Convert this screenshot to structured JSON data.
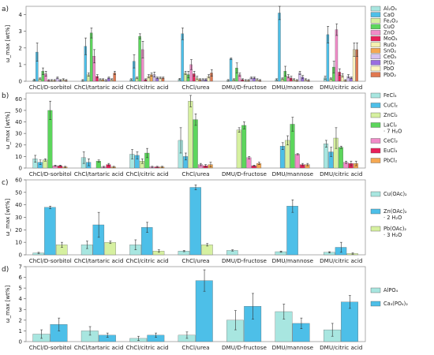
{
  "chart_data": [
    {
      "type": "bar",
      "panel_label": "a)",
      "ylabel": "ω_max [wt%]",
      "ylim": [
        0,
        4.5
      ],
      "yticks": [
        0,
        1,
        2,
        3,
        4
      ],
      "categories": [
        "ChCl/D-sorbitol",
        "ChCl/tartaric acid",
        "ChCl/citric acid",
        "ChCl/urea",
        "DMU/D-fructose",
        "DMU/mannose",
        "DMU/citric acid"
      ],
      "series": [
        {
          "name": "Al₂O₃",
          "color": "#a8e6e0",
          "values": [
            0.08,
            0.05,
            0.1,
            0.12,
            0.05,
            0.1,
            0.2
          ],
          "errors": [
            0.05,
            0.05,
            0.05,
            0.05,
            0.05,
            0.05,
            0.1
          ]
        },
        {
          "name": "CaO",
          "color": "#4dbfe8",
          "values": [
            1.75,
            2.1,
            1.2,
            2.85,
            1.35,
            4.1,
            2.8
          ],
          "errors": [
            0.55,
            0.5,
            0.4,
            0.35,
            0.05,
            0.4,
            0.5
          ]
        },
        {
          "name": "Fe₂O₃",
          "color": "#d6f0a0",
          "values": [
            0.15,
            0.4,
            0.2,
            0.5,
            0.1,
            0.15,
            0.15
          ],
          "errors": [
            0.05,
            0.1,
            0.05,
            0.1,
            0.05,
            0.05,
            0.05
          ]
        },
        {
          "name": "CuO",
          "color": "#5cd65c",
          "values": [
            0.6,
            2.9,
            2.7,
            0.4,
            0.8,
            0.6,
            0.85
          ],
          "errors": [
            0.2,
            0.3,
            0.15,
            0.2,
            0.3,
            0.3,
            0.35
          ]
        },
        {
          "name": "ZnO",
          "color": "#f08cc8",
          "values": [
            0.45,
            1.5,
            1.9,
            1.0,
            0.4,
            0.3,
            3.1
          ],
          "errors": [
            0.15,
            0.4,
            0.5,
            0.3,
            0.1,
            0.1,
            0.35
          ]
        },
        {
          "name": "MoO₃",
          "color": "#e8205a",
          "values": [
            0.05,
            0.3,
            0.1,
            0.45,
            0.1,
            0.2,
            0.55
          ],
          "errors": [
            0.05,
            0.1,
            0.05,
            0.15,
            0.05,
            0.1,
            0.2
          ]
        },
        {
          "name": "RuO₂",
          "color": "#f5f0b0",
          "values": [
            0.05,
            0.1,
            0.3,
            0.2,
            0.05,
            0.1,
            0.35
          ],
          "errors": [
            0.05,
            0.05,
            0.1,
            0.1,
            0.05,
            0.05,
            0.1
          ]
        },
        {
          "name": "SnO₂",
          "color": "#f5a852",
          "values": [
            0.05,
            0.1,
            0.4,
            0.1,
            0.05,
            0.05,
            0.05
          ],
          "errors": [
            0.05,
            0.05,
            0.1,
            0.05,
            0.05,
            0.05,
            0.05
          ]
        },
        {
          "name": "CeO₂",
          "color": "#d6c2f0",
          "values": [
            0.2,
            0.05,
            0.4,
            0.1,
            0.2,
            0.5,
            0.3
          ],
          "errors": [
            0.05,
            0.05,
            0.15,
            0.05,
            0.05,
            0.1,
            0.1
          ]
        },
        {
          "name": "PtO₂",
          "color": "#9a6ee0",
          "values": [
            0.05,
            0.2,
            0.2,
            0.1,
            0.2,
            0.25,
            0.2
          ],
          "errors": [
            0.05,
            0.05,
            0.05,
            0.05,
            0.05,
            0.1,
            0.05
          ]
        },
        {
          "name": "PbO",
          "color": "#fff6c0",
          "values": [
            0.1,
            0.1,
            0.2,
            0.3,
            0.1,
            0.1,
            1.9
          ],
          "errors": [
            0.05,
            0.05,
            0.05,
            0.1,
            0.05,
            0.05,
            0.4
          ]
        },
        {
          "name": "PbO₂",
          "color": "#e07850",
          "values": [
            0.05,
            0.5,
            0.2,
            0.5,
            0.05,
            0.05,
            1.9
          ],
          "errors": [
            0.05,
            0.1,
            0.05,
            0.2,
            0.05,
            0.05,
            0.4
          ]
        }
      ]
    },
    {
      "type": "bar",
      "panel_label": "b)",
      "ylabel": "ω_max [wt%]",
      "ylim": [
        0,
        65
      ],
      "yticks": [
        0,
        10,
        20,
        30,
        40,
        50,
        60
      ],
      "categories": [
        "ChCl/D-sorbitol",
        "ChCl/tartaric acid",
        "ChCl/citric acid",
        "ChCl/urea",
        "DMU/D-fructose",
        "DMU/mannose",
        "DMU/citric acid"
      ],
      "series": [
        {
          "name": "FeCl₃",
          "color": "#a8e6e0",
          "values": [
            8,
            9,
            12,
            24,
            0,
            0,
            21
          ],
          "errors": [
            3,
            5,
            4,
            11,
            0,
            0,
            3
          ]
        },
        {
          "name": "CuCl₂",
          "color": "#4dbfe8",
          "values": [
            5,
            5,
            11,
            10,
            0,
            19,
            14
          ],
          "errors": [
            2,
            3,
            3,
            3,
            0,
            3,
            4
          ]
        },
        {
          "name": "ZnCl₂",
          "color": "#d6f0a0",
          "values": [
            7,
            0,
            6,
            58,
            33,
            24,
            26
          ],
          "errors": [
            1,
            0,
            2,
            5,
            2,
            4,
            9
          ]
        },
        {
          "name": "LaCl₃ · 7 H₂O",
          "color": "#5cd65c",
          "values": [
            50,
            6,
            13,
            42,
            37,
            38,
            18
          ],
          "errors": [
            8,
            1,
            4,
            5,
            3,
            6,
            1
          ]
        },
        {
          "name": "CeCl₃",
          "color": "#f08cc8",
          "values": [
            2,
            1,
            1,
            3,
            9,
            12,
            5
          ],
          "errors": [
            0.5,
            0.5,
            0.5,
            1,
            1,
            0.5,
            1
          ]
        },
        {
          "name": "EuCl₃",
          "color": "#e8205a",
          "values": [
            2,
            3,
            1,
            2,
            2,
            3,
            4
          ],
          "errors": [
            0.5,
            1,
            0.5,
            1,
            0.5,
            1,
            2
          ]
        },
        {
          "name": "PbCl₂",
          "color": "#f5a852",
          "values": [
            1,
            1,
            1,
            3,
            4,
            3,
            4
          ],
          "errors": [
            0.5,
            0.5,
            0.5,
            2,
            1,
            1,
            2
          ]
        }
      ]
    },
    {
      "type": "bar",
      "panel_label": "c)",
      "ylabel": "ω_max [wt%]",
      "ylim": [
        0,
        60
      ],
      "yticks": [
        0,
        10,
        20,
        30,
        40,
        50,
        60
      ],
      "categories": [
        "ChCl/D-sorbitol",
        "ChCl/tartaric acid",
        "ChCl/citric acid",
        "ChCl/urea",
        "DMU/D-fructose",
        "DMU/mannose",
        "DMU/citric acid"
      ],
      "series": [
        {
          "name": "Cu(OAc)₂",
          "color": "#a8e6e0",
          "values": [
            1.5,
            8,
            8,
            3,
            3.5,
            2.5,
            2
          ],
          "errors": [
            0.5,
            3,
            4,
            0.5,
            0.5,
            0.5,
            0.5
          ]
        },
        {
          "name": "Zn(OAc)₂ · 2 H₂O",
          "color": "#4dbfe8",
          "values": [
            38,
            24,
            22,
            54,
            0,
            39,
            6
          ],
          "errors": [
            1,
            10,
            4,
            2,
            0,
            5,
            4
          ]
        },
        {
          "name": "Pb(OAc)₂ · 3 H₂O",
          "color": "#d6f0a0",
          "values": [
            8,
            10,
            3,
            8,
            0,
            0,
            1
          ],
          "errors": [
            2,
            1,
            1,
            1,
            0,
            0,
            0.5
          ]
        }
      ]
    },
    {
      "type": "bar",
      "panel_label": "d)",
      "ylabel": "ω_max [wt%]",
      "ylim": [
        0,
        7
      ],
      "yticks": [
        0,
        1,
        2,
        3,
        4,
        5,
        6,
        7
      ],
      "categories": [
        "ChCl/D-sorbitol",
        "ChCl/tartaric acid",
        "ChCl/citric acid",
        "ChCl/urea",
        "DMU/D-fructose",
        "DMU/mannose",
        "DMU/citric acid"
      ],
      "series": [
        {
          "name": "AlPO₄",
          "color": "#a8e6e0",
          "values": [
            0.7,
            1.0,
            0.3,
            0.6,
            2.0,
            2.8,
            1.1
          ],
          "errors": [
            0.4,
            0.4,
            0.2,
            0.3,
            0.9,
            0.7,
            0.6
          ]
        },
        {
          "name": "Ca₃(PO₄)₂",
          "color": "#4dbfe8",
          "values": [
            1.6,
            0.6,
            0.6,
            5.7,
            3.3,
            1.7,
            3.7
          ],
          "errors": [
            0.6,
            0.2,
            0.2,
            1.0,
            1.2,
            0.5,
            0.6
          ]
        }
      ]
    }
  ]
}
